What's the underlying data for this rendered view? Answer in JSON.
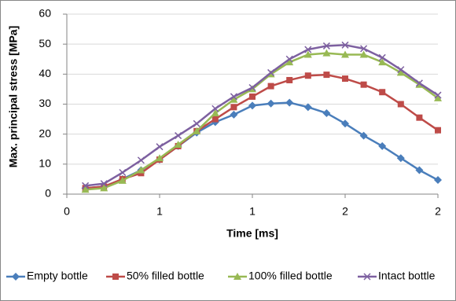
{
  "chart_data": {
    "type": "line",
    "x_label": "Time [ms]",
    "y_label": "Max. principal stress [MPa]",
    "x": [
      0.1,
      0.2,
      0.3,
      0.4,
      0.5,
      0.6,
      0.7,
      0.8,
      0.9,
      1.0,
      1.1,
      1.2,
      1.3,
      1.4,
      1.5,
      1.6,
      1.7,
      1.8,
      1.9,
      2.0
    ],
    "series": [
      {
        "name": "Empty bottle",
        "color": "#4a7ebb",
        "marker": "diamond",
        "values": [
          2,
          2.5,
          5,
          8,
          11.5,
          16,
          20.5,
          24,
          26.5,
          29.5,
          30.2,
          30.5,
          29,
          27,
          23.5,
          19.5,
          16,
          12,
          8,
          4.7
        ]
      },
      {
        "name": "50% filled bottle",
        "color": "#be4b48",
        "marker": "square",
        "values": [
          2,
          2.5,
          5,
          7,
          11.5,
          16,
          21,
          25,
          29,
          32.5,
          36,
          38,
          39.5,
          39.8,
          38.5,
          36.5,
          34,
          30,
          25.5,
          21.3
        ]
      },
      {
        "name": "100% filled bottle",
        "color": "#98b954",
        "marker": "triangle",
        "values": [
          1.5,
          2,
          4.5,
          8,
          12,
          16.5,
          21,
          27,
          31.5,
          35,
          40,
          44,
          46.5,
          47,
          46.5,
          46.5,
          44,
          40.5,
          36.5,
          32
        ]
      },
      {
        "name": "Intact bottle",
        "color": "#7d60a0",
        "marker": "x",
        "values": [
          2.8,
          3.5,
          7.2,
          11.3,
          15.8,
          19.5,
          23.5,
          28.5,
          32.5,
          35.5,
          40.5,
          45,
          48.2,
          49.4,
          49.7,
          48.5,
          45.5,
          41.5,
          37,
          33
        ]
      }
    ],
    "xlim": [
      0,
      2
    ],
    "xticks": [
      0,
      {
        "value": 0.5,
        "label": "1"
      },
      1,
      {
        "value": 1.5,
        "label": "2"
      },
      2
    ],
    "ylim": [
      0,
      60
    ],
    "yticks": [
      0,
      10,
      20,
      30,
      40,
      50,
      60
    ],
    "grid": true,
    "legend": "bottom"
  }
}
